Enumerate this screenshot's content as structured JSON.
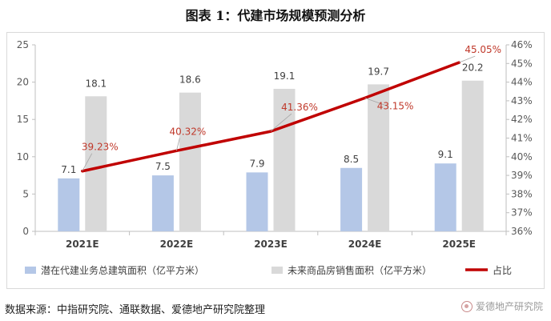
{
  "title": "图表 1：代建市场规模预测分析",
  "source": "数据来源：中指研究院、通联数据、爱德地产研究院整理",
  "watermark": "爱德地产研究院",
  "colors": {
    "bar_blue": "#b4c7e7",
    "bar_gray": "#d9d9d9",
    "line_red": "#c00000",
    "line_label_red": "#c0392b"
  },
  "chart_data": {
    "type": "bar",
    "title": "代建市场规模预测分析",
    "categories": [
      "2021E",
      "2022E",
      "2023E",
      "2024E",
      "2025E"
    ],
    "series": [
      {
        "name": "潜在代建业务总建筑面积（亿平方米）",
        "type": "bar",
        "axis": "left",
        "values": [
          7.1,
          7.5,
          7.9,
          8.5,
          9.1
        ],
        "labels": [
          "7.1",
          "7.5",
          "7.9",
          "8.5",
          "9.1"
        ]
      },
      {
        "name": "未来商品房销售面积（亿平方米）",
        "type": "bar",
        "axis": "left",
        "values": [
          18.1,
          18.6,
          19.1,
          19.7,
          20.2
        ],
        "labels": [
          "18.1",
          "18.6",
          "19.1",
          "19.7",
          "20.2"
        ]
      },
      {
        "name": "占比",
        "type": "line",
        "axis": "right",
        "values": [
          39.23,
          40.32,
          41.36,
          43.15,
          45.05
        ],
        "labels": [
          "39.23%",
          "40.32%",
          "41.36%",
          "43.15%",
          "45.05%"
        ]
      }
    ],
    "left_axis": {
      "min": 0,
      "max": 25,
      "ticks": [
        "0",
        "5",
        "10",
        "15",
        "20",
        "25"
      ]
    },
    "right_axis": {
      "min": 36,
      "max": 46,
      "ticks": [
        "36%",
        "37%",
        "38%",
        "39%",
        "40%",
        "41%",
        "42%",
        "43%",
        "44%",
        "45%",
        "46%"
      ]
    },
    "grid": false,
    "legend_position": "bottom"
  }
}
